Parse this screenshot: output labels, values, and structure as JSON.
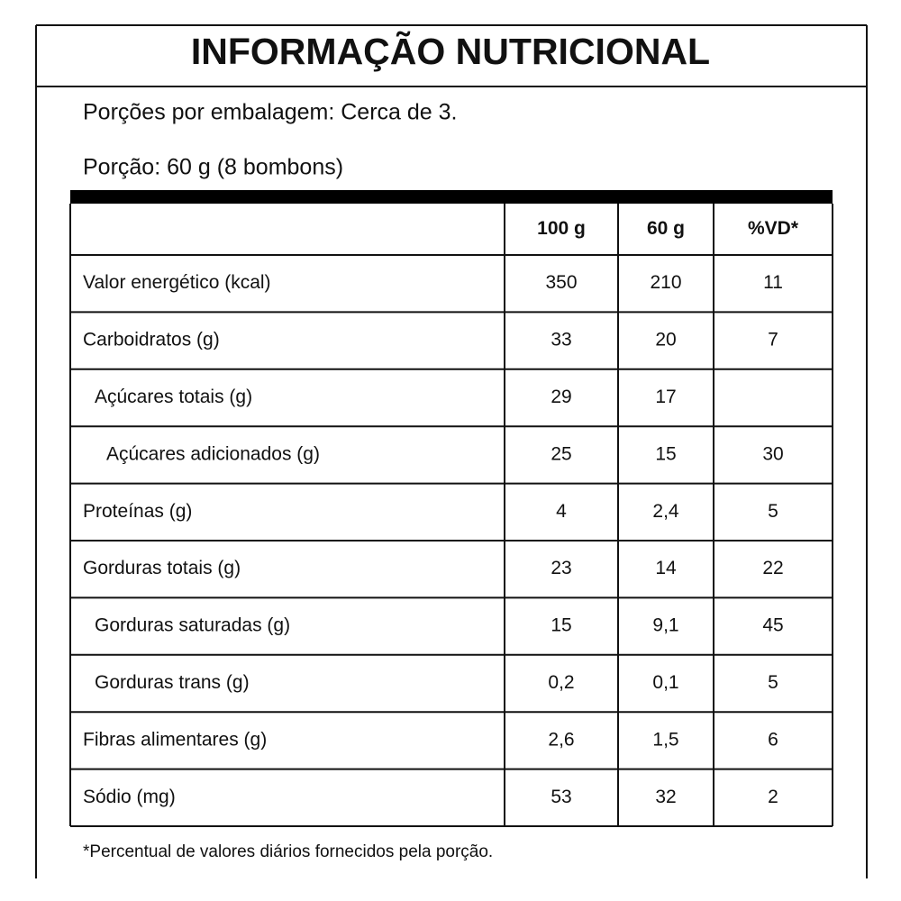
{
  "title": "INFORMAÇÃO NUTRICIONAL",
  "servings_per_package": "Porções por embalagem: Cerca de 3.",
  "serving_size": "Porção: 60 g (8 bombons)",
  "table": {
    "header": [
      "100 g",
      "60 g",
      "%VD*"
    ],
    "rows": [
      {
        "label": "Valor energético (kcal)",
        "values": [
          "350",
          "210",
          "11"
        ]
      },
      {
        "label": "Carboidratos (g)",
        "values": [
          "33",
          "20",
          "7"
        ]
      },
      {
        "label": "Açúcares totais (g)",
        "values": [
          "29",
          "17",
          null
        ]
      },
      {
        "label": "Açúcares adicionados (g)",
        "values": [
          "25",
          "15",
          "30"
        ]
      },
      {
        "label": "Proteínas (g)",
        "values": [
          "4",
          "2,4",
          "5"
        ]
      },
      {
        "label": "Gorduras totais (g)",
        "values": [
          "23",
          "14",
          "22"
        ]
      },
      {
        "label": "Gorduras saturadas (g)",
        "values": [
          "15",
          "9,1",
          "45"
        ]
      },
      {
        "label": "Gorduras trans (g)",
        "values": [
          "0,2",
          "0,1",
          "5"
        ]
      },
      {
        "label": "Fibras alimentares (g)",
        "values": [
          "2,6",
          "1,5",
          "6"
        ]
      },
      {
        "label": "Sódio (mg)",
        "values": [
          "53",
          "32",
          "2"
        ]
      }
    ]
  },
  "footnote": "*Percentual de valores diários fornecidos pela porção."
}
